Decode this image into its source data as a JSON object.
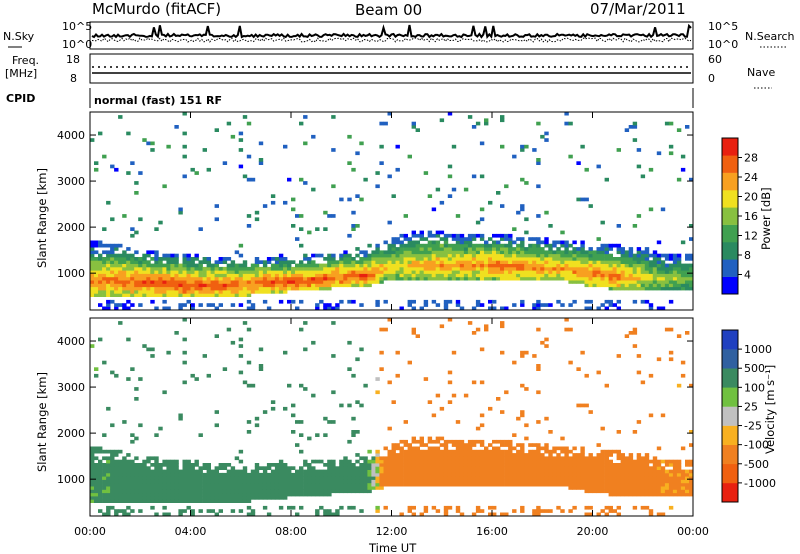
{
  "header": {
    "station": "McMurdo (fitACF)",
    "beam": "Beam 00",
    "date": "07/Mar/2011"
  },
  "top_panels": {
    "nsky_label": "N.Sky",
    "nsky_ticks": [
      "10^5",
      "10^0"
    ],
    "nsearch_label": "N.Search",
    "nsearch_ticks": [
      "10^5",
      "10^0"
    ],
    "freq_label_1": "Freq.",
    "freq_label_2": "[MHz]",
    "freq_ticks": [
      "18",
      "8"
    ],
    "nave_label": "Nave",
    "nave_ticks": [
      "60",
      "0"
    ],
    "cpid_label": "CPID",
    "cpid_value": "normal (fast) 151 RF"
  },
  "chart_data": [
    {
      "type": "heatmap",
      "title": "",
      "ylabel": "Slant Range [km]",
      "xlabel": "",
      "ylim": [
        200,
        4500
      ],
      "yticks": [
        "1000",
        "2000",
        "3000",
        "4000"
      ],
      "xlim_hours": [
        0,
        24
      ],
      "colorbar": {
        "label": "Power [dB]",
        "ticks": [
          "28",
          "24",
          "20",
          "16",
          "12",
          "8",
          "4"
        ],
        "range": [
          0,
          32
        ],
        "colors": [
          "#0000ff",
          "#2060c0",
          "#2a8a60",
          "#40a050",
          "#88c040",
          "#f0e020",
          "#f8a020",
          "#f06010",
          "#e82010"
        ]
      },
      "echo_band": {
        "lower_km": [
          450,
          500,
          520,
          480,
          450,
          470,
          500,
          560,
          600,
          620,
          700,
          700,
          850,
          860,
          870,
          880,
          880,
          860,
          850,
          820,
          700,
          650,
          640,
          650
        ],
        "upper_km": [
          1700,
          1650,
          1500,
          1450,
          1400,
          1350,
          1350,
          1350,
          1350,
          1400,
          1450,
          1500,
          1800,
          1900,
          1900,
          1850,
          1850,
          1800,
          1750,
          1700,
          1650,
          1600,
          1550,
          1400
        ],
        "peak_db": [
          24,
          26,
          28,
          28,
          28,
          28,
          26,
          28,
          28,
          28,
          28,
          28,
          20,
          22,
          24,
          24,
          26,
          26,
          24,
          24,
          26,
          26,
          20,
          16
        ]
      }
    },
    {
      "type": "heatmap",
      "title": "",
      "ylabel": "Slant Range [km]",
      "xlabel": "Time UT",
      "ylim": [
        200,
        4500
      ],
      "yticks": [
        "1000",
        "2000",
        "3000",
        "4000"
      ],
      "xticks": [
        "00:00",
        "04:00",
        "08:00",
        "12:00",
        "16:00",
        "20:00",
        "00:00"
      ],
      "xlim_hours": [
        0,
        24
      ],
      "colorbar": {
        "label": "Velocity [m s⁻¹]",
        "ticks": [
          "1000",
          "500",
          "100",
          "25",
          "-25",
          "-100",
          "-500",
          "-1000"
        ],
        "colors": [
          "#2040c0",
          "#3060a0",
          "#3a8a60",
          "#70c040",
          "#c0c0c0",
          "#f8b020",
          "#f08020",
          "#f06010",
          "#e82010"
        ]
      },
      "velocity_by_hour_ms": [
        150,
        180,
        200,
        200,
        220,
        220,
        200,
        200,
        220,
        220,
        300,
        200,
        -300,
        -350,
        -350,
        -300,
        -300,
        -300,
        -280,
        -280,
        -260,
        -250,
        -200,
        -150
      ]
    }
  ]
}
